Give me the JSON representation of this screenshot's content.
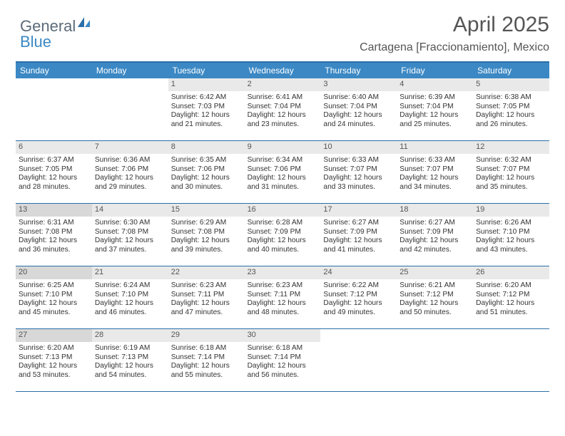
{
  "logo": {
    "part1": "General",
    "part2": "Blue"
  },
  "title": "April 2025",
  "location": "Cartagena [Fraccionamiento], Mexico",
  "colors": {
    "header_bg": "#3b88c4",
    "header_border": "#2b6fa8",
    "daybar_bg": "#e9e9e9",
    "daybar_shade": "#d8d8d8",
    "text": "#333333",
    "logo_gray": "#5b6b7a",
    "logo_blue": "#3b88c4"
  },
  "weekday_labels": [
    "Sunday",
    "Monday",
    "Tuesday",
    "Wednesday",
    "Thursday",
    "Friday",
    "Saturday"
  ],
  "calendar": {
    "first_weekday_index": 2,
    "days": [
      {
        "n": 1,
        "sunrise": "6:42 AM",
        "sunset": "7:03 PM",
        "daylight": "12 hours and 21 minutes."
      },
      {
        "n": 2,
        "sunrise": "6:41 AM",
        "sunset": "7:04 PM",
        "daylight": "12 hours and 23 minutes."
      },
      {
        "n": 3,
        "sunrise": "6:40 AM",
        "sunset": "7:04 PM",
        "daylight": "12 hours and 24 minutes."
      },
      {
        "n": 4,
        "sunrise": "6:39 AM",
        "sunset": "7:04 PM",
        "daylight": "12 hours and 25 minutes."
      },
      {
        "n": 5,
        "sunrise": "6:38 AM",
        "sunset": "7:05 PM",
        "daylight": "12 hours and 26 minutes."
      },
      {
        "n": 6,
        "sunrise": "6:37 AM",
        "sunset": "7:05 PM",
        "daylight": "12 hours and 28 minutes."
      },
      {
        "n": 7,
        "sunrise": "6:36 AM",
        "sunset": "7:06 PM",
        "daylight": "12 hours and 29 minutes."
      },
      {
        "n": 8,
        "sunrise": "6:35 AM",
        "sunset": "7:06 PM",
        "daylight": "12 hours and 30 minutes."
      },
      {
        "n": 9,
        "sunrise": "6:34 AM",
        "sunset": "7:06 PM",
        "daylight": "12 hours and 31 minutes."
      },
      {
        "n": 10,
        "sunrise": "6:33 AM",
        "sunset": "7:07 PM",
        "daylight": "12 hours and 33 minutes."
      },
      {
        "n": 11,
        "sunrise": "6:33 AM",
        "sunset": "7:07 PM",
        "daylight": "12 hours and 34 minutes."
      },
      {
        "n": 12,
        "sunrise": "6:32 AM",
        "sunset": "7:07 PM",
        "daylight": "12 hours and 35 minutes."
      },
      {
        "n": 13,
        "sunrise": "6:31 AM",
        "sunset": "7:08 PM",
        "daylight": "12 hours and 36 minutes."
      },
      {
        "n": 14,
        "sunrise": "6:30 AM",
        "sunset": "7:08 PM",
        "daylight": "12 hours and 37 minutes."
      },
      {
        "n": 15,
        "sunrise": "6:29 AM",
        "sunset": "7:08 PM",
        "daylight": "12 hours and 39 minutes."
      },
      {
        "n": 16,
        "sunrise": "6:28 AM",
        "sunset": "7:09 PM",
        "daylight": "12 hours and 40 minutes."
      },
      {
        "n": 17,
        "sunrise": "6:27 AM",
        "sunset": "7:09 PM",
        "daylight": "12 hours and 41 minutes."
      },
      {
        "n": 18,
        "sunrise": "6:27 AM",
        "sunset": "7:09 PM",
        "daylight": "12 hours and 42 minutes."
      },
      {
        "n": 19,
        "sunrise": "6:26 AM",
        "sunset": "7:10 PM",
        "daylight": "12 hours and 43 minutes."
      },
      {
        "n": 20,
        "sunrise": "6:25 AM",
        "sunset": "7:10 PM",
        "daylight": "12 hours and 45 minutes."
      },
      {
        "n": 21,
        "sunrise": "6:24 AM",
        "sunset": "7:10 PM",
        "daylight": "12 hours and 46 minutes."
      },
      {
        "n": 22,
        "sunrise": "6:23 AM",
        "sunset": "7:11 PM",
        "daylight": "12 hours and 47 minutes."
      },
      {
        "n": 23,
        "sunrise": "6:23 AM",
        "sunset": "7:11 PM",
        "daylight": "12 hours and 48 minutes."
      },
      {
        "n": 24,
        "sunrise": "6:22 AM",
        "sunset": "7:12 PM",
        "daylight": "12 hours and 49 minutes."
      },
      {
        "n": 25,
        "sunrise": "6:21 AM",
        "sunset": "7:12 PM",
        "daylight": "12 hours and 50 minutes."
      },
      {
        "n": 26,
        "sunrise": "6:20 AM",
        "sunset": "7:12 PM",
        "daylight": "12 hours and 51 minutes."
      },
      {
        "n": 27,
        "sunrise": "6:20 AM",
        "sunset": "7:13 PM",
        "daylight": "12 hours and 53 minutes."
      },
      {
        "n": 28,
        "sunrise": "6:19 AM",
        "sunset": "7:13 PM",
        "daylight": "12 hours and 54 minutes."
      },
      {
        "n": 29,
        "sunrise": "6:18 AM",
        "sunset": "7:14 PM",
        "daylight": "12 hours and 55 minutes."
      },
      {
        "n": 30,
        "sunrise": "6:18 AM",
        "sunset": "7:14 PM",
        "daylight": "12 hours and 56 minutes."
      }
    ]
  },
  "labels": {
    "sunrise": "Sunrise:",
    "sunset": "Sunset:",
    "daylight": "Daylight:"
  },
  "typography": {
    "title_fontsize": 30,
    "location_fontsize": 16,
    "header_fontsize": 12,
    "cell_fontsize": 10
  }
}
